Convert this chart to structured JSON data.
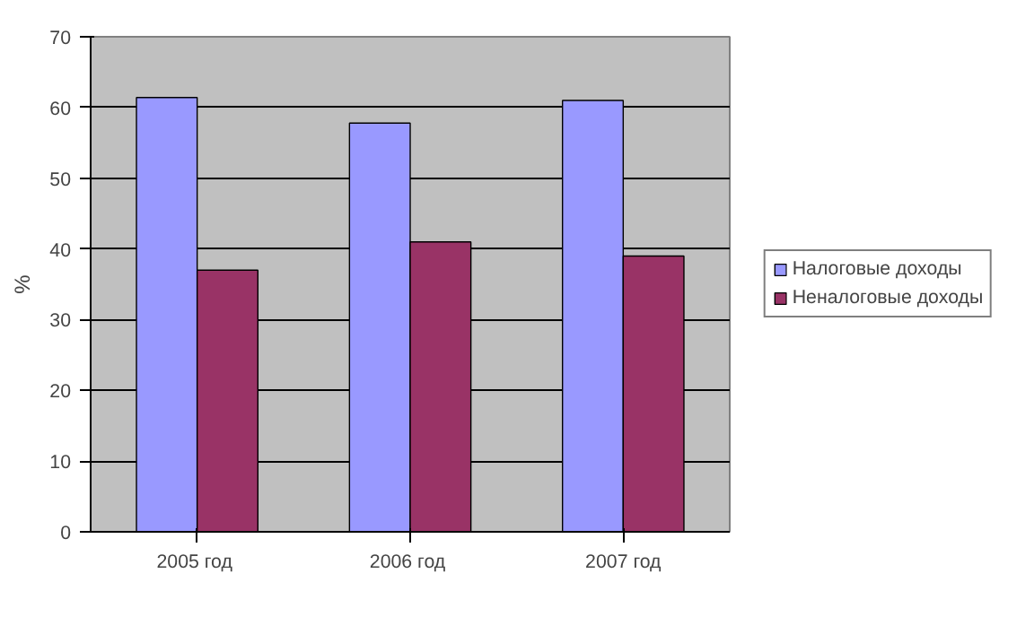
{
  "chart_data": {
    "type": "bar",
    "ylabel": "%",
    "categories": [
      "2005  год",
      "2006  год",
      "2007 год"
    ],
    "series": [
      {
        "name": "Налоговые доходы",
        "color": "#9999ff",
        "values": [
          61.4,
          57.8,
          61.0
        ]
      },
      {
        "name": "Неналоговые доходы",
        "color": "#993366",
        "values": [
          37.0,
          41.0,
          39.0
        ]
      }
    ],
    "ylim": [
      0,
      70
    ],
    "yticks": [
      0,
      10,
      20,
      30,
      40,
      50,
      60,
      70
    ],
    "grid": "y",
    "legend": "right"
  }
}
